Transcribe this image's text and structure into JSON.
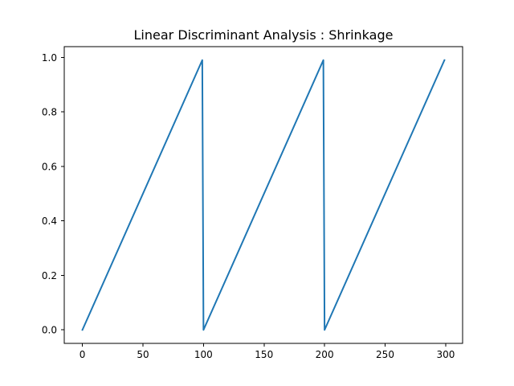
{
  "chart_data": {
    "type": "line",
    "title": "Linear Discriminant Analysis : Shrinkage",
    "xlabel": "",
    "ylabel": "",
    "xlim": [
      -15,
      314
    ],
    "ylim": [
      -0.0495,
      1.0395
    ],
    "xticks": [
      0,
      50,
      100,
      150,
      200,
      250,
      300
    ],
    "xtick_labels": [
      "0",
      "50",
      "100",
      "150",
      "200",
      "250",
      "300"
    ],
    "yticks": [
      0.0,
      0.2,
      0.4,
      0.6,
      0.8,
      1.0
    ],
    "ytick_labels": [
      "0.0",
      "0.2",
      "0.4",
      "0.6",
      "0.8",
      "1.0"
    ],
    "grid": false,
    "series": [
      {
        "color": "#1f77b4",
        "x": [
          0,
          99,
          100,
          199,
          200,
          299
        ],
        "y": [
          0.0,
          0.99,
          0.0,
          0.99,
          0.0,
          0.99
        ]
      }
    ]
  }
}
